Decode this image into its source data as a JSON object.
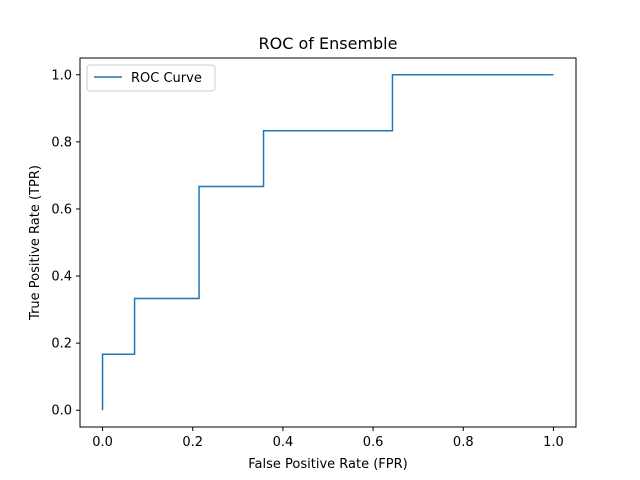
{
  "chart_data": {
    "type": "line",
    "title": "ROC of Ensemble",
    "xlabel": "False Positive Rate (FPR)",
    "ylabel": "True Positive Rate (TPR)",
    "xlim": [
      -0.05,
      1.05
    ],
    "ylim": [
      -0.05,
      1.05
    ],
    "xticks": [
      0.0,
      0.2,
      0.4,
      0.6,
      0.8,
      1.0
    ],
    "xtick_labels": [
      "0.0",
      "0.2",
      "0.4",
      "0.6",
      "0.8",
      "1.0"
    ],
    "yticks": [
      0.0,
      0.2,
      0.4,
      0.6,
      0.8,
      1.0
    ],
    "ytick_labels": [
      "0.0",
      "0.2",
      "0.4",
      "0.6",
      "0.8",
      "1.0"
    ],
    "grid": false,
    "legend_position": "upper-left",
    "series": [
      {
        "name": "ROC Curve",
        "color": "#1f77b4",
        "x": [
          0.0,
          0.0,
          0.071,
          0.071,
          0.214,
          0.214,
          0.357,
          0.357,
          0.643,
          0.643,
          1.0
        ],
        "y": [
          0.0,
          0.167,
          0.167,
          0.333,
          0.333,
          0.667,
          0.667,
          0.833,
          0.833,
          1.0,
          1.0
        ]
      }
    ]
  }
}
